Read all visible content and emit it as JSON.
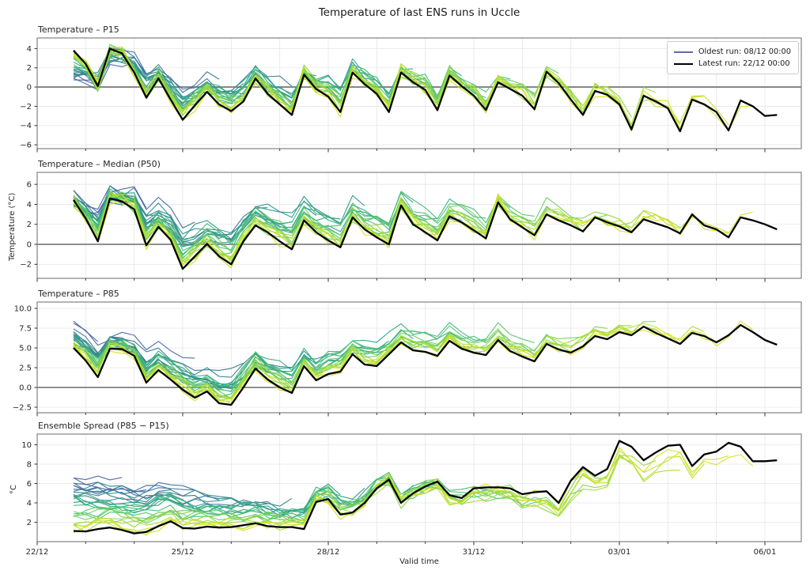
{
  "title": "Temperature of last ENS runs in Uccle",
  "xlabel": "Valid time",
  "legend": {
    "oldest_label": "Oldest run: 08/12 00:00",
    "latest_label": "Latest run: 22/12 00:00",
    "oldest_color": "#6269ae",
    "latest_color": "#000000"
  },
  "chart_data": {
    "type": "line",
    "x_axis": {
      "start_day_offset": 0.75,
      "step_days": 0.25,
      "xlim": [
        0,
        15.75
      ],
      "xticks": [
        {
          "t": 0,
          "label": "22/12"
        },
        {
          "t": 3,
          "label": "25/12"
        },
        {
          "t": 6,
          "label": "28/12"
        },
        {
          "t": 9,
          "label": "31/12"
        },
        {
          "t": 12,
          "label": "03/01"
        },
        {
          "t": 15,
          "label": "06/01"
        }
      ],
      "minor_step_days": 1
    },
    "colormap": [
      "#4e5aa8",
      "#40699f",
      "#33838c",
      "#2b9e89",
      "#3ab977",
      "#6ccf5f",
      "#a8dd34",
      "#e8e419"
    ],
    "ensemble": {
      "n_members": 28,
      "oldest_init": "08/12 00:00",
      "latest_init": "22/12 00:00",
      "init_step_days": 0.5,
      "forecast_length_days": 15.25,
      "member_first_valid_day": 0.75,
      "oldest_member_end_day": 1.25
    },
    "panels": [
      {
        "title": "Temperature – P15",
        "ylabel": "",
        "ylim": [
          -6.4,
          5.1
        ],
        "yticks": [
          {
            "v": 4,
            "label": "4"
          },
          {
            "v": 2,
            "label": "2"
          },
          {
            "v": 0,
            "label": "0"
          },
          {
            "v": -2,
            "label": "−2"
          },
          {
            "v": -4,
            "label": "−4"
          },
          {
            "v": -6,
            "label": "−6"
          }
        ],
        "zero_line": true,
        "latest_run": [
          3.8,
          2.4,
          0.1,
          4.0,
          3.5,
          1.5,
          -1.1,
          0.9,
          -1.3,
          -3.4,
          -1.9,
          -0.5,
          -1.8,
          -2.5,
          -1.5,
          0.9,
          -0.7,
          -1.8,
          -2.9,
          1.3,
          -0.2,
          -1.0,
          -2.6,
          1.5,
          0.3,
          -0.7,
          -2.6,
          1.5,
          0.5,
          -0.3,
          -2.4,
          1.2,
          0.1,
          -0.9,
          -2.4,
          0.5,
          -0.2,
          -0.9,
          -2.3,
          1.6,
          0.4,
          -1.3,
          -2.9,
          -0.4,
          -0.8,
          -1.8,
          -4.4,
          -0.9,
          -1.5,
          -2.2,
          -4.6,
          -1.3,
          -1.8,
          -2.6,
          -4.5,
          -1.4,
          -2.0,
          -3.0,
          -2.9
        ],
        "ensemble_params": {
          "mode": "temp",
          "spread_scale": 2.4,
          "early_bias": -2.4
        }
      },
      {
        "title": "Temperature – Median (P50)",
        "ylabel": "Temperature (°C)",
        "ylim": [
          -3.4,
          7.2
        ],
        "yticks": [
          {
            "v": 6,
            "label": "6"
          },
          {
            "v": 4,
            "label": "4"
          },
          {
            "v": 2,
            "label": "2"
          },
          {
            "v": 0,
            "label": "0"
          },
          {
            "v": -2,
            "label": "−2"
          }
        ],
        "zero_line": true,
        "latest_run": [
          4.45,
          2.6,
          0.3,
          4.6,
          4.3,
          3.5,
          -0.1,
          1.75,
          0.45,
          -2.45,
          -1.2,
          0.05,
          -1.2,
          -2.0,
          0.3,
          1.9,
          1.2,
          0.3,
          -0.5,
          2.4,
          1.2,
          0.4,
          -0.3,
          2.7,
          1.5,
          0.7,
          0.0,
          3.9,
          2.0,
          1.2,
          0.4,
          2.8,
          2.2,
          1.4,
          0.6,
          4.2,
          2.5,
          1.7,
          0.9,
          3.0,
          2.4,
          1.9,
          1.3,
          2.7,
          2.2,
          1.8,
          1.2,
          2.5,
          2.1,
          1.7,
          1.1,
          3.0,
          1.9,
          1.5,
          0.7,
          2.7,
          2.4,
          2.0,
          1.5
        ],
        "ensemble_params": {
          "mode": "temp",
          "spread_scale": 3.4,
          "early_bias": 1.2
        }
      },
      {
        "title": "Temperature – P85",
        "ylabel": "",
        "ylim": [
          -3.2,
          10.8
        ],
        "yticks": [
          {
            "v": 10,
            "label": "10.0"
          },
          {
            "v": 7.5,
            "label": "7.5"
          },
          {
            "v": 5,
            "label": "5.0"
          },
          {
            "v": 2.5,
            "label": "2.5"
          },
          {
            "v": 0,
            "label": "0.0"
          },
          {
            "v": -2.5,
            "label": "−2.5"
          }
        ],
        "zero_line": true,
        "latest_run": [
          5.0,
          3.4,
          1.3,
          4.9,
          4.85,
          4.0,
          0.6,
          2.2,
          1.0,
          -0.3,
          -1.3,
          -0.5,
          -2.0,
          -2.2,
          0.0,
          2.4,
          1.0,
          0.0,
          -0.7,
          2.7,
          0.9,
          1.7,
          2.0,
          4.2,
          2.9,
          2.7,
          4.2,
          5.7,
          4.7,
          4.5,
          4.0,
          5.9,
          4.9,
          4.4,
          4.1,
          6.0,
          4.6,
          3.9,
          3.3,
          5.5,
          4.8,
          4.4,
          5.2,
          6.5,
          6.1,
          7.0,
          6.6,
          7.7,
          6.9,
          6.2,
          5.5,
          6.9,
          6.5,
          5.7,
          6.6,
          7.9,
          7.0,
          6.0,
          5.4
        ],
        "ensemble_params": {
          "mode": "temp",
          "spread_scale": 4.2,
          "early_bias": 3.2
        }
      },
      {
        "title": "Ensemble Spread (P85 − P15)",
        "ylabel": "°C",
        "ylim": [
          0,
          11.1
        ],
        "yticks": [
          {
            "v": 10,
            "label": "10"
          },
          {
            "v": 8,
            "label": "8"
          },
          {
            "v": 6,
            "label": "6"
          },
          {
            "v": 4,
            "label": "4"
          },
          {
            "v": 2,
            "label": "2"
          }
        ],
        "zero_line": false,
        "latest_run": [
          1.1,
          1.05,
          1.3,
          1.45,
          1.2,
          0.85,
          1.0,
          1.6,
          2.1,
          1.4,
          1.35,
          1.55,
          1.45,
          1.5,
          1.7,
          1.9,
          1.6,
          1.5,
          1.5,
          1.3,
          4.1,
          4.4,
          2.8,
          3.0,
          4.0,
          5.5,
          6.4,
          4.0,
          5.0,
          5.7,
          6.2,
          4.8,
          4.5,
          5.5,
          5.6,
          5.6,
          5.5,
          4.9,
          5.1,
          5.2,
          4.0,
          6.3,
          7.7,
          6.8,
          7.5,
          10.4,
          9.8,
          8.4,
          9.2,
          9.9,
          10.0,
          7.8,
          9.0,
          9.3,
          10.2,
          9.8,
          8.3,
          8.3,
          8.4
        ],
        "ensemble_params": {
          "mode": "spread",
          "early_offset_min": 5.2,
          "early_offset_rand": 2.2,
          "late_sag": 1.5
        }
      }
    ]
  }
}
